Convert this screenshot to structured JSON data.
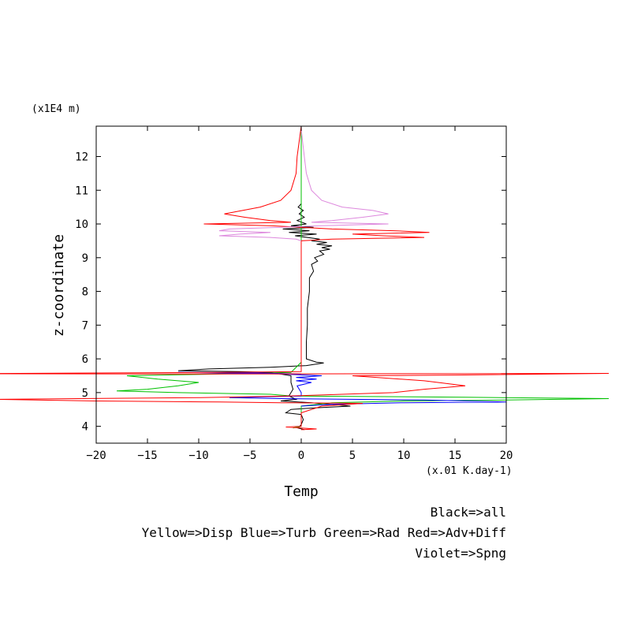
{
  "chart_data": {
    "type": "line",
    "title": "",
    "xlabel": "Temp",
    "xunits": "(x.01 K.day-1)",
    "ylabel": "z-coordinate",
    "yunits": "(x1E4 m)",
    "xlim": [
      -20,
      20
    ],
    "ylim": [
      3.5,
      12.9
    ],
    "xticks": [
      -20,
      -15,
      -10,
      -5,
      0,
      5,
      10,
      15,
      20
    ],
    "yticks": [
      4,
      5,
      6,
      7,
      8,
      9,
      10,
      11,
      12
    ],
    "grid": false,
    "legend_lines": [
      "Black=>all",
      "Yellow=>Disp  Blue=>Turb  Green=>Rad  Red=>Adv+Diff",
      "Violet=>Spng"
    ],
    "series": [
      {
        "color": "#000000",
        "points": [
          [
            0,
            12.8
          ],
          [
            0,
            10.6
          ],
          [
            -0.3,
            10.5
          ],
          [
            0.2,
            10.4
          ],
          [
            -0.2,
            10.3
          ],
          [
            0.3,
            10.2
          ],
          [
            -0.4,
            10.1
          ],
          [
            0.5,
            10.0
          ],
          [
            -1.0,
            9.95
          ],
          [
            1.2,
            9.9
          ],
          [
            -1.8,
            9.85
          ],
          [
            0.8,
            9.8
          ],
          [
            -1.2,
            9.75
          ],
          [
            1.5,
            9.7
          ],
          [
            -0.6,
            9.65
          ],
          [
            1.8,
            9.55
          ],
          [
            1.0,
            9.5
          ],
          [
            2.5,
            9.45
          ],
          [
            1.5,
            9.4
          ],
          [
            3.0,
            9.35
          ],
          [
            2.0,
            9.3
          ],
          [
            2.8,
            9.25
          ],
          [
            1.8,
            9.2
          ],
          [
            2.2,
            9.1
          ],
          [
            1.3,
            9.0
          ],
          [
            1.6,
            8.9
          ],
          [
            1.0,
            8.8
          ],
          [
            1.2,
            8.6
          ],
          [
            0.8,
            8.4
          ],
          [
            0.8,
            8.0
          ],
          [
            0.6,
            7.5
          ],
          [
            0.6,
            7.0
          ],
          [
            0.5,
            6.5
          ],
          [
            0.5,
            6.0
          ],
          [
            1.5,
            5.9
          ],
          [
            2.2,
            5.88
          ],
          [
            0.5,
            5.8
          ],
          [
            -3,
            5.75
          ],
          [
            -9,
            5.7
          ],
          [
            -12,
            5.65
          ],
          [
            -6,
            5.62
          ],
          [
            -3,
            5.6
          ],
          [
            -1.0,
            5.5
          ],
          [
            -1.0,
            5.3
          ],
          [
            -0.8,
            5.1
          ],
          [
            -1.2,
            4.9
          ],
          [
            -0.5,
            4.8
          ],
          [
            -2.0,
            4.75
          ],
          [
            1.0,
            4.7
          ],
          [
            3.0,
            4.65
          ],
          [
            4.8,
            4.6
          ],
          [
            1.5,
            4.55
          ],
          [
            -1.0,
            4.5
          ],
          [
            -1.5,
            4.4
          ],
          [
            0.0,
            4.35
          ],
          [
            0.2,
            4.2
          ],
          [
            0.0,
            4.05
          ],
          [
            -0.3,
            3.95
          ],
          [
            0.3,
            3.9
          ]
        ]
      },
      {
        "color": "#00c000",
        "points": [
          [
            0,
            12.8
          ],
          [
            0,
            5.9
          ],
          [
            -1,
            5.6
          ],
          [
            -8,
            5.55
          ],
          [
            -17,
            5.5
          ],
          [
            -14,
            5.4
          ],
          [
            -10,
            5.3
          ],
          [
            -12,
            5.2
          ],
          [
            -15,
            5.1
          ],
          [
            -18,
            5.05
          ],
          [
            -12,
            5.0
          ],
          [
            -3,
            4.95
          ],
          [
            -1,
            4.9
          ],
          [
            8,
            4.88
          ],
          [
            16,
            4.86
          ],
          [
            30,
            4.82
          ],
          [
            20,
            4.78
          ],
          [
            10,
            4.75
          ],
          [
            3,
            4.7
          ],
          [
            0,
            4.6
          ],
          [
            0,
            4.0
          ],
          [
            -0.8,
            3.95
          ]
        ]
      },
      {
        "color": "#0000ff",
        "points": [
          [
            0,
            5.55
          ],
          [
            -4,
            5.58
          ],
          [
            -12,
            5.6
          ],
          [
            -2,
            5.55
          ],
          [
            2,
            5.5
          ],
          [
            -0.5,
            5.45
          ],
          [
            1.5,
            5.4
          ],
          [
            -0.5,
            5.35
          ],
          [
            1.0,
            5.3
          ],
          [
            -0.4,
            5.2
          ],
          [
            0,
            5.0
          ],
          [
            0,
            4.9
          ],
          [
            -7,
            4.85
          ],
          [
            -2,
            4.82
          ],
          [
            12,
            4.78
          ],
          [
            20,
            4.72
          ],
          [
            10,
            4.7
          ],
          [
            3,
            4.65
          ],
          [
            0,
            4.6
          ]
        ]
      },
      {
        "color": "#ff0000",
        "points": [
          [
            0,
            12.9
          ],
          [
            -0.4,
            12.0
          ],
          [
            -0.5,
            11.5
          ],
          [
            -1.0,
            11.0
          ],
          [
            -2.0,
            10.7
          ],
          [
            -4.0,
            10.5
          ],
          [
            -7.5,
            10.3
          ],
          [
            -5.5,
            10.2
          ],
          [
            -3.0,
            10.1
          ],
          [
            -1.0,
            10.05
          ],
          [
            -9.5,
            10.0
          ],
          [
            -3.0,
            9.95
          ],
          [
            0,
            9.9
          ],
          [
            3.0,
            9.85
          ],
          [
            9.0,
            9.8
          ],
          [
            12.5,
            9.75
          ],
          [
            5.0,
            9.7
          ],
          [
            8.0,
            9.65
          ],
          [
            12.0,
            9.6
          ],
          [
            3.0,
            9.55
          ],
          [
            0.0,
            9.5
          ],
          [
            0,
            5.62
          ],
          [
            -8,
            5.6
          ],
          [
            -20,
            5.58
          ],
          [
            -35,
            5.56
          ],
          [
            -10,
            5.55
          ],
          [
            10,
            5.56
          ],
          [
            30,
            5.57
          ],
          [
            15,
            5.52
          ],
          [
            5,
            5.5
          ],
          [
            12,
            5.35
          ],
          [
            16,
            5.2
          ],
          [
            12,
            5.1
          ],
          [
            9,
            5.0
          ],
          [
            4,
            4.95
          ],
          [
            -1,
            4.9
          ],
          [
            -10,
            4.85
          ],
          [
            -30,
            4.8
          ],
          [
            -20,
            4.75
          ],
          [
            -8,
            4.72
          ],
          [
            -2,
            4.7
          ],
          [
            6,
            4.68
          ],
          [
            2,
            4.6
          ],
          [
            0,
            4.4
          ],
          [
            0,
            4.0
          ],
          [
            -1.5,
            3.98
          ],
          [
            0,
            3.95
          ],
          [
            1.5,
            3.92
          ],
          [
            0,
            3.9
          ]
        ]
      },
      {
        "color": "#dd88dd",
        "points": [
          [
            0,
            12.8
          ],
          [
            0.3,
            12.0
          ],
          [
            0.5,
            11.5
          ],
          [
            1.0,
            11.0
          ],
          [
            2.0,
            10.7
          ],
          [
            4.0,
            10.5
          ],
          [
            7.0,
            10.4
          ],
          [
            8.5,
            10.3
          ],
          [
            6.0,
            10.2
          ],
          [
            3.0,
            10.1
          ],
          [
            1.0,
            10.05
          ],
          [
            8.5,
            10.0
          ],
          [
            2.0,
            9.95
          ],
          [
            -2.0,
            9.9
          ],
          [
            -7.0,
            9.85
          ],
          [
            -8.0,
            9.8
          ],
          [
            -3.0,
            9.75
          ],
          [
            -6.0,
            9.7
          ],
          [
            -8.0,
            9.65
          ],
          [
            -3.0,
            9.6
          ],
          [
            -0.5,
            9.55
          ],
          [
            0,
            9.5
          ]
        ]
      }
    ]
  }
}
